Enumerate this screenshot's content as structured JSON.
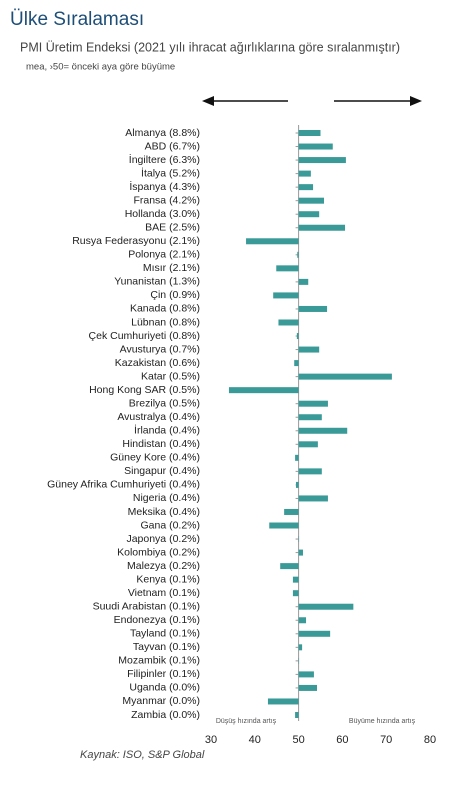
{
  "chart_data": {
    "type": "bar",
    "orientation": "horizontal",
    "title": "Ülke Sıralaması",
    "subtitle": "PMI Üretim Endeksi (2021 yılı ihracat ağırlıklarına göre sıralanmıştır)",
    "note": "mea, ›50= önceki aya göre büyüme",
    "categories": [
      "Almanya (8.8%)",
      "ABD (6.7%)",
      "İngiltere (6.3%)",
      "İtalya (5.2%)",
      "İspanya (4.3%)",
      "Fransa (4.2%)",
      "Hollanda (3.0%)",
      "BAE (2.5%)",
      "Rusya Federasyonu (2.1%)",
      "Polonya (2.1%)",
      "Mısır (2.1%)",
      "Yunanistan (1.3%)",
      "Çin (0.9%)",
      "Kanada (0.8%)",
      "Lübnan (0.8%)",
      "Çek Cumhuriyeti (0.8%)",
      "Avusturya (0.7%)",
      "Kazakistan (0.6%)",
      "Katar (0.5%)",
      "Hong Kong SAR (0.5%)",
      "Brezilya (0.5%)",
      "Avustralya (0.4%)",
      "İrlanda (0.4%)",
      "Hindistan (0.4%)",
      "Güney Kore (0.4%)",
      "Singapur (0.4%)",
      "Güney Afrika Cumhuriyeti (0.4%)",
      "Nigeria (0.4%)",
      "Meksika (0.4%)",
      "Gana (0.2%)",
      "Japonya (0.2%)",
      "Kolombiya (0.2%)",
      "Malezya (0.2%)",
      "Kenya (0.1%)",
      "Vietnam (0.1%)",
      "Suudi Arabistan (0.1%)",
      "Endonezya (0.1%)",
      "Tayland (0.1%)",
      "Tayvan (0.1%)",
      "Mozambik (0.1%)",
      "Filipinler (0.1%)",
      "Uganda (0.0%)",
      "Myanmar (0.0%)",
      "Zambia (0.0%)"
    ],
    "values": [
      55.0,
      57.8,
      60.8,
      52.8,
      53.3,
      55.8,
      54.7,
      60.6,
      38.0,
      49.7,
      44.9,
      52.2,
      44.2,
      56.5,
      45.4,
      49.6,
      54.7,
      49.0,
      71.3,
      34.1,
      56.7,
      55.3,
      61.1,
      54.4,
      49.2,
      55.3,
      49.4,
      56.7,
      46.7,
      43.3,
      50.1,
      51.0,
      45.8,
      48.7,
      48.7,
      62.5,
      51.7,
      57.2,
      50.8,
      50.1,
      53.5,
      54.2,
      43.0,
      49.2
    ],
    "color": "#3a9a98",
    "bar_base": 50,
    "xlim": [
      30,
      80
    ],
    "xticks": [
      30,
      40,
      50,
      60,
      70,
      80
    ],
    "annotations": [
      "Düşüş hızında artış",
      "Büyüme hızında artış"
    ],
    "source": "Kaynak: ISO, S&P Global"
  }
}
